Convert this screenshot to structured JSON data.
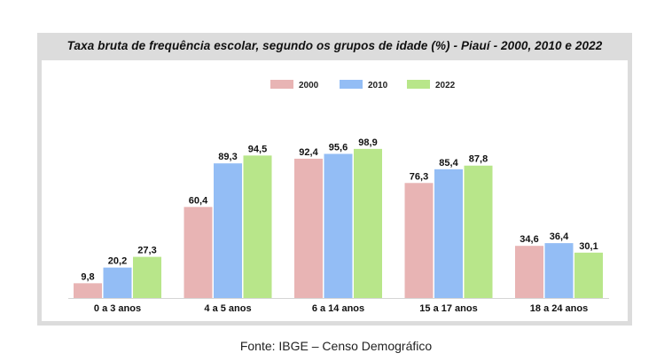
{
  "chart_data": {
    "type": "bar",
    "title": "Taxa bruta de frequência escolar, segundo os grupos de idade (%) - Piauí - 2000, 2010 e 2022",
    "categories": [
      "0 a 3 anos",
      "4 a 5 anos",
      "6 a 14 anos",
      "15 a 17 anos",
      "18 a 24 anos"
    ],
    "series": [
      {
        "name": "2000",
        "color": "#e8b4b4",
        "values": [
          9.8,
          60.4,
          92.4,
          76.3,
          34.6
        ]
      },
      {
        "name": "2010",
        "color": "#93bdf5",
        "values": [
          20.2,
          89.3,
          95.6,
          85.4,
          36.4
        ]
      },
      {
        "name": "2022",
        "color": "#b8e68a",
        "values": [
          27.3,
          94.5,
          98.9,
          87.8,
          30.1
        ]
      }
    ],
    "value_labels": [
      [
        "9,8",
        "60,4",
        "92,4",
        "76,3",
        "34,6"
      ],
      [
        "20,2",
        "89,3",
        "95,6",
        "85,4",
        "36,4"
      ],
      [
        "27,3",
        "94,5",
        "98,9",
        "87,8",
        "30,1"
      ]
    ],
    "ylim": [
      0,
      100
    ],
    "grid": false,
    "legend_position": "top-center"
  },
  "source": "Fonte: IBGE – Censo Demográfico"
}
